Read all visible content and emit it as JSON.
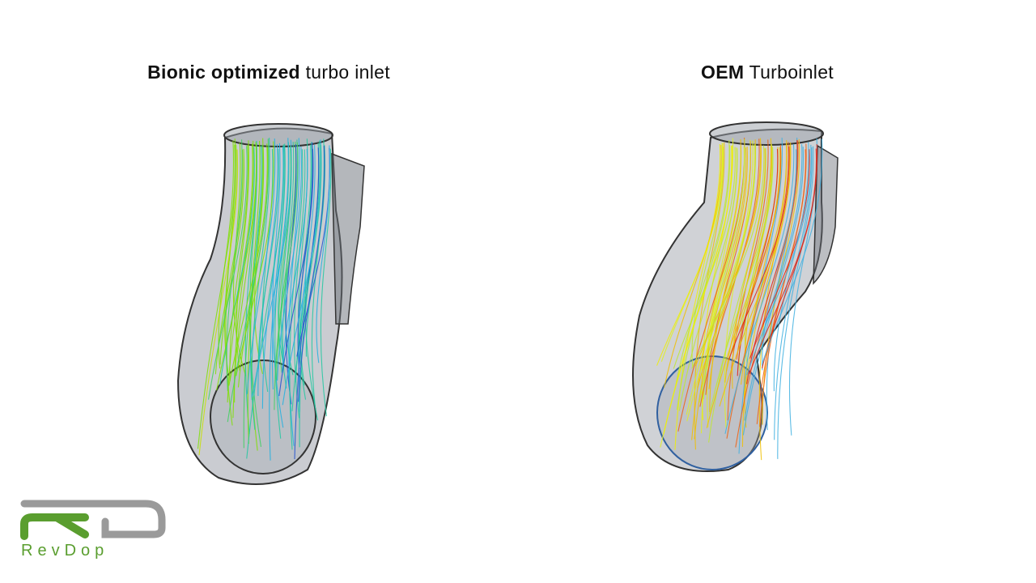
{
  "slide": {
    "left": {
      "title_bold": "Bionic optimized",
      "title_rest": " turbo inlet",
      "palette": [
        "#c8e000",
        "#7fe000",
        "#3fd060",
        "#20c8a0",
        "#20b0e0",
        "#2050d0"
      ]
    },
    "right": {
      "title_bold": "OEM",
      "title_rest": " Turboinlet",
      "palette": [
        "#f0f000",
        "#e0f020",
        "#c0e830",
        "#f0c000",
        "#f06010",
        "#e02010",
        "#40b0e0"
      ]
    }
  },
  "logo": {
    "monogram": "RD",
    "wordmark": "RevDop",
    "colors": {
      "green": "#5a9e2f",
      "gray": "#9a9a9a"
    }
  }
}
